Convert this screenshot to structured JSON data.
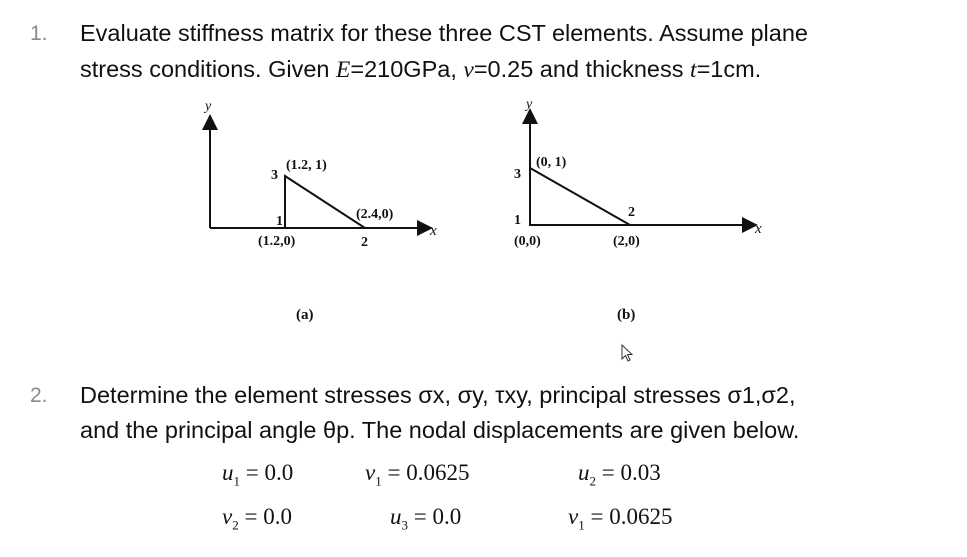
{
  "q1": {
    "number": "1.",
    "line1": "Evaluate stiffness matrix for these three CST elements. Assume  plane",
    "line2_prefix": "stress conditions. Given ",
    "E_sym": "E",
    "E_val": "=210GPa, ",
    "nu_sym": "ν",
    "nu_val": "=0.25 and thickness ",
    "t_sym": "t",
    "t_val": "=1cm."
  },
  "figure_a": {
    "y_label": "y",
    "x_label": "x",
    "node1": "1",
    "node2": "2",
    "node3": "3",
    "coord1": "(1.2,0)",
    "coord2": "(2.4,0)",
    "coord3": "(1.2, 1)",
    "caption": "(a)"
  },
  "figure_b": {
    "y_label": "y",
    "x_label": "x",
    "node1": "1",
    "node2": "2",
    "node3": "3",
    "coord1": "(0,0)",
    "coord2": "(2,0)",
    "coord3": "(0, 1)",
    "caption": "(b)"
  },
  "q2": {
    "number": "2.",
    "line1": "Determine the element stresses σx, σy, τxy, principal stresses σ1,σ2,",
    "line2": "and the principal angle θp. The nodal displacements are given below."
  },
  "displacements": {
    "u1": {
      "var": "u",
      "sub": "1",
      "eq": " = 0.0"
    },
    "v1": {
      "var": "v",
      "sub": "1",
      "eq": " = 0.0625"
    },
    "u2": {
      "var": "u",
      "sub": "2",
      "eq": " = 0.03"
    },
    "v2": {
      "var": "v",
      "sub": "2",
      "eq": " = 0.0"
    },
    "u3": {
      "var": "u",
      "sub": "3",
      "eq": " = 0.0"
    },
    "v1b": {
      "var": "v",
      "sub": "1",
      "eq": " = 0.0625"
    }
  }
}
